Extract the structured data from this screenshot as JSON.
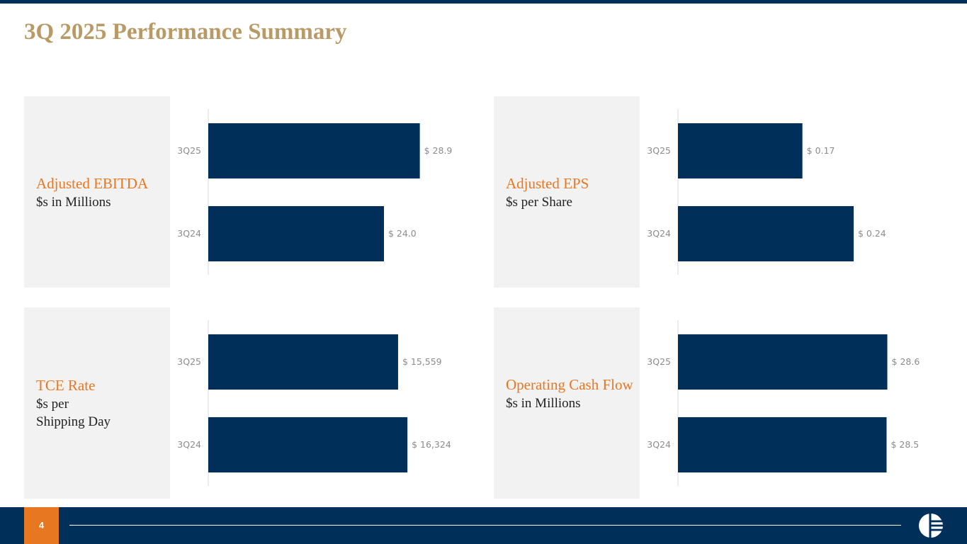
{
  "slide": {
    "title": "3Q 2025 Performance Summary",
    "page_number": "4"
  },
  "colors": {
    "bar": "#00305a",
    "accent": "#e87722",
    "title": "#b99a66"
  },
  "panels": [
    {
      "name": "Adjusted EBITDA",
      "unit": "$s in Millions"
    },
    {
      "name": "Adjusted EPS",
      "unit": "$s per Share"
    },
    {
      "name": "TCE Rate",
      "unit": "$s per\nShipping Day"
    },
    {
      "name": "Operating Cash Flow",
      "unit": "$s in Millions"
    }
  ],
  "chart_data": [
    {
      "type": "bar",
      "orientation": "horizontal",
      "title": "Adjusted EBITDA",
      "categories": [
        "3Q25",
        "3Q24"
      ],
      "values": [
        28.9,
        24.0
      ],
      "value_labels": [
        "$ 28.9",
        "$ 24.0"
      ],
      "xlim": [
        0,
        30
      ]
    },
    {
      "type": "bar",
      "orientation": "horizontal",
      "title": "Adjusted EPS",
      "categories": [
        "3Q25",
        "3Q24"
      ],
      "values": [
        0.17,
        0.24
      ],
      "value_labels": [
        "$ 0.17",
        "$ 0.24"
      ],
      "xlim": [
        0,
        0.3
      ]
    },
    {
      "type": "bar",
      "orientation": "horizontal",
      "title": "TCE Rate",
      "categories": [
        "3Q25",
        "3Q24"
      ],
      "values": [
        15559,
        16324
      ],
      "value_labels": [
        "$ 15,559",
        "$ 16,324"
      ],
      "xlim": [
        0,
        18000
      ]
    },
    {
      "type": "bar",
      "orientation": "horizontal",
      "title": "Operating Cash Flow",
      "categories": [
        "3Q25",
        "3Q24"
      ],
      "values": [
        28.6,
        28.5
      ],
      "value_labels": [
        "$ 28.6",
        "$ 28.5"
      ],
      "xlim": [
        0,
        30
      ]
    }
  ]
}
